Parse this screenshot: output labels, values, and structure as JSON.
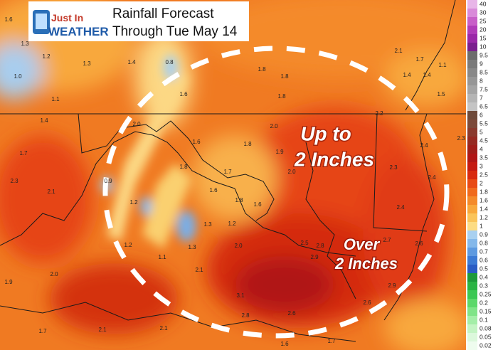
{
  "header": {
    "logo_top": "Just In",
    "logo_bottom": "WEATHER",
    "title_line1": "Rainfall Forecast",
    "title_line2": "Through Tue May 14"
  },
  "annotations": {
    "inner_line1": "Up to",
    "inner_line2": "2 Inches",
    "outer_line1": "Over",
    "outer_line2": "2 Inches"
  },
  "legend": {
    "items": [
      {
        "label": "40",
        "color": "#e8b6e8"
      },
      {
        "label": "30",
        "color": "#d98ad9"
      },
      {
        "label": "25",
        "color": "#c85fc8"
      },
      {
        "label": "20",
        "color": "#b03cb8"
      },
      {
        "label": "15",
        "color": "#9a28a8"
      },
      {
        "label": "10",
        "color": "#7a1e8e"
      },
      {
        "label": "9.5",
        "color": "#6c6c6c"
      },
      {
        "label": "9",
        "color": "#7a7a7a"
      },
      {
        "label": "8.5",
        "color": "#888888"
      },
      {
        "label": "8",
        "color": "#969696"
      },
      {
        "label": "7.5",
        "color": "#a4a4a4"
      },
      {
        "label": "7",
        "color": "#b4b4b4"
      },
      {
        "label": "6.5",
        "color": "#c4c4c4"
      },
      {
        "label": "6",
        "color": "#6e4a3a"
      },
      {
        "label": "5.5",
        "color": "#7c4a3a"
      },
      {
        "label": "5",
        "color": "#8a3a2e"
      },
      {
        "label": "4.5",
        "color": "#962a22"
      },
      {
        "label": "4",
        "color": "#a01e1a"
      },
      {
        "label": "3.5",
        "color": "#b01616"
      },
      {
        "label": "3",
        "color": "#c41a12"
      },
      {
        "label": "2.5",
        "color": "#d82a10"
      },
      {
        "label": "2",
        "color": "#e84a14"
      },
      {
        "label": "1.8",
        "color": "#f06a1c"
      },
      {
        "label": "1.6",
        "color": "#f48a2a"
      },
      {
        "label": "1.4",
        "color": "#f8a83c"
      },
      {
        "label": "1.2",
        "color": "#fac45a"
      },
      {
        "label": "1",
        "color": "#fcdc84"
      },
      {
        "label": "0.9",
        "color": "#a8d0f0"
      },
      {
        "label": "0.8",
        "color": "#84b8ea"
      },
      {
        "label": "0.7",
        "color": "#5e9ae0"
      },
      {
        "label": "0.6",
        "color": "#3c7ad4"
      },
      {
        "label": "0.5",
        "color": "#2a5cc4"
      },
      {
        "label": "0.4",
        "color": "#1e9a3a"
      },
      {
        "label": "0.3",
        "color": "#2ab444"
      },
      {
        "label": "0.25",
        "color": "#3cc854"
      },
      {
        "label": "0.2",
        "color": "#5cd86a"
      },
      {
        "label": "0.15",
        "color": "#80e488"
      },
      {
        "label": "0.1",
        "color": "#a4eea8"
      },
      {
        "label": "0.08",
        "color": "#c4f4c4"
      },
      {
        "label": "0.05",
        "color": "#dcf8dc"
      },
      {
        "label": "0.02",
        "color": "#eefcee"
      }
    ]
  },
  "map_values": [
    "1.6",
    "1.3",
    "1.2",
    "1.3",
    "1.4",
    "0.8",
    "1.0",
    "1.1",
    "1.6",
    "1.8",
    "1.8",
    "1.8",
    "2.1",
    "1.7",
    "1.4",
    "1.4",
    "1.1",
    "1.5",
    "1.4",
    "2.0",
    "1.6",
    "1.8",
    "2.0",
    "2.2",
    "2.4",
    "2.3",
    "1.7",
    "1.8",
    "1.7",
    "1.9",
    "2.0",
    "2.3",
    "2.4",
    "2.3",
    "0.9",
    "2.1",
    "1.6",
    "1.8",
    "1.6",
    "2.4",
    "1.2",
    "1.2",
    "1.3",
    "1.2",
    "1.1",
    "1.3",
    "2.0",
    "2.5",
    "2.8",
    "2.9",
    "2.7",
    "2.6",
    "2.0",
    "2.1",
    "1.9",
    "2.9",
    "3.1",
    "2.6",
    "2.1",
    "2.8",
    "2.6",
    "1.7",
    "2.1",
    "1.6",
    "1.7"
  ]
}
